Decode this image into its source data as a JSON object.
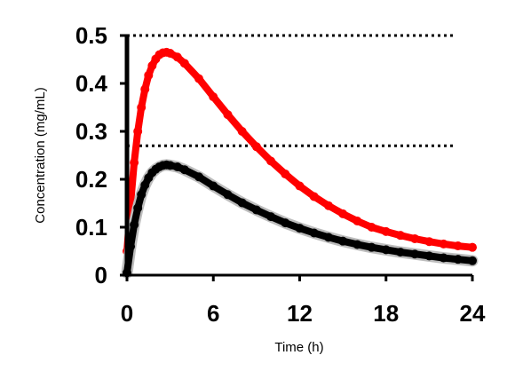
{
  "chart_data": {
    "type": "line",
    "xlabel": "Time (h)",
    "ylabel": "Concentration  (mg/mL)",
    "xlim": [
      0,
      24
    ],
    "ylim": [
      0,
      0.5
    ],
    "x_ticks": [
      "0",
      "6",
      "12",
      "18",
      "24"
    ],
    "y_ticks": [
      "0",
      "0.1",
      "0.2",
      "0.3",
      "0.4",
      "0.5"
    ],
    "reference_lines": [
      0.5,
      0.27
    ],
    "series": [
      {
        "color": "#ff0000",
        "x": [
          0,
          0.25,
          0.5,
          0.75,
          1,
          1.25,
          1.5,
          1.75,
          2,
          2.25,
          2.5,
          2.75,
          3,
          3.5,
          4,
          5,
          6,
          7,
          8,
          9,
          10,
          11,
          12,
          13,
          14,
          15,
          16,
          17,
          18,
          19,
          20,
          21,
          22,
          23,
          24
        ],
        "values": [
          0.05,
          0.15,
          0.235,
          0.3,
          0.35,
          0.388,
          0.417,
          0.437,
          0.451,
          0.46,
          0.464,
          0.465,
          0.463,
          0.455,
          0.442,
          0.41,
          0.372,
          0.335,
          0.3,
          0.268,
          0.238,
          0.211,
          0.186,
          0.164,
          0.145,
          0.128,
          0.113,
          0.1,
          0.091,
          0.083,
          0.076,
          0.07,
          0.065,
          0.061,
          0.058
        ]
      },
      {
        "color": "#000000",
        "x": [
          0,
          0.25,
          0.5,
          0.75,
          1,
          1.25,
          1.5,
          1.75,
          2,
          2.25,
          2.5,
          2.75,
          3,
          3.5,
          4,
          5,
          6,
          7,
          8,
          9,
          10,
          11,
          12,
          13,
          14,
          15,
          16,
          17,
          18,
          19,
          20,
          21,
          22,
          23,
          24
        ],
        "values": [
          0.005,
          0.06,
          0.105,
          0.14,
          0.168,
          0.188,
          0.203,
          0.214,
          0.221,
          0.226,
          0.229,
          0.23,
          0.229,
          0.226,
          0.22,
          0.205,
          0.186,
          0.168,
          0.151,
          0.136,
          0.122,
          0.109,
          0.098,
          0.088,
          0.079,
          0.071,
          0.064,
          0.058,
          0.053,
          0.048,
          0.044,
          0.04,
          0.036,
          0.033,
          0.03
        ]
      }
    ]
  }
}
